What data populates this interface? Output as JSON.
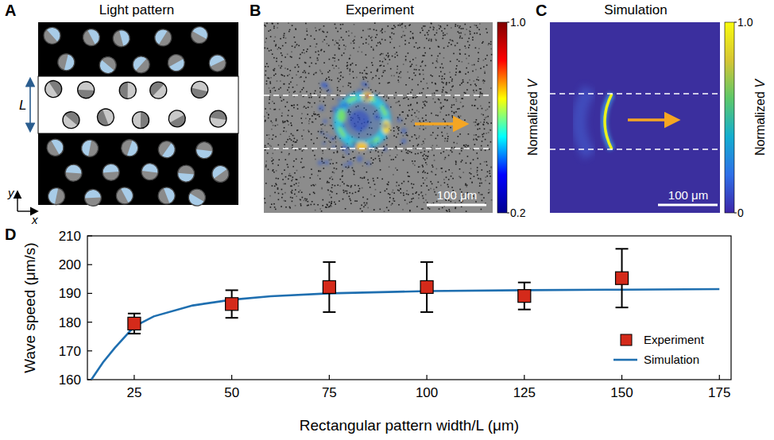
{
  "panels": [
    {
      "letter": "A",
      "title": "Light pattern",
      "width_label": "L",
      "axis_labels": [
        "y",
        "x"
      ]
    },
    {
      "letter": "B",
      "title": "Experiment",
      "scale_bar": "100 μm",
      "colorbar": {
        "label": "Normalized V",
        "range": [
          0.2,
          1.0
        ],
        "ticks": [
          {
            "value": 1.0,
            "label": "1.0"
          },
          {
            "value": 0.2,
            "label": "0.2"
          }
        ]
      }
    },
    {
      "letter": "C",
      "title": "Simulation",
      "scale_bar": "100 μm",
      "colorbar": {
        "label": "Normalized V",
        "range": [
          0,
          1.0
        ],
        "ticks": [
          {
            "value": 1.0,
            "label": "1.0"
          },
          0
        ]
      }
    }
  ],
  "chart_data": {
    "letter": "D",
    "type": "scatter",
    "x_label": "Rectangular pattern width/L (μm)",
    "y_label": "Wave speed (μm/s)",
    "xlim": [
      13,
      178
    ],
    "xticks": [
      25,
      50,
      75,
      100,
      125,
      150,
      175
    ],
    "ylim": [
      160,
      210
    ],
    "yticks": [
      160,
      170,
      180,
      190,
      200,
      210
    ],
    "grid": false,
    "legend": "lower right",
    "series": [
      {
        "name": "Experiment",
        "type": "scatter",
        "marker": "square",
        "color": "#d42a1a",
        "x": [
          25,
          50,
          75,
          100,
          125,
          150
        ],
        "values": [
          179.5,
          186.3,
          192.2,
          192.2,
          189.1,
          195.3
        ],
        "errors": [
          3.5,
          4.8,
          8.7,
          8.7,
          4.7,
          10.2
        ]
      },
      {
        "name": "Simulation",
        "type": "line",
        "line_style": "solid",
        "color": "#1f6fb0",
        "x": [
          14,
          17,
          20,
          25,
          30,
          40,
          50,
          60,
          75,
          100,
          125,
          150,
          175
        ],
        "values": [
          160,
          166,
          171,
          178.5,
          182,
          185.8,
          187.8,
          189,
          190,
          190.8,
          191.1,
          191.3,
          191.5
        ]
      }
    ]
  }
}
